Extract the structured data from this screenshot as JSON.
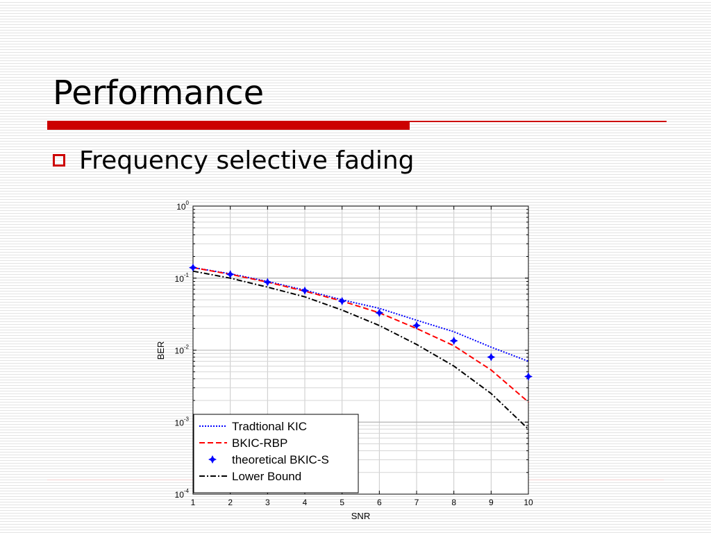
{
  "slide": {
    "title": "Performance",
    "bullet": "Frequency selective fading"
  },
  "colors": {
    "accent_red": "#cc0000",
    "rule_pink": "#f2cccc",
    "series_blue": "#0000ff",
    "series_red": "#ff0000",
    "series_black": "#000000"
  },
  "icons": {
    "bullet": "hollow-square-bullet-icon",
    "marker": "star-diamond-marker-icon"
  },
  "chart_data": {
    "type": "line",
    "title": "",
    "xlabel": "SNR",
    "ylabel": "BER",
    "xlim": [
      1,
      10
    ],
    "ylim": [
      0.0001,
      1
    ],
    "yscale": "log",
    "grid": true,
    "legend_position": "bottom-left",
    "x_ticks": [
      "1",
      "2",
      "3",
      "4",
      "5",
      "6",
      "7",
      "8",
      "9",
      "10"
    ],
    "y_ticks": [
      {
        "base": "10",
        "exp": "0"
      },
      {
        "base": "10",
        "exp": "-1"
      },
      {
        "base": "10",
        "exp": "-2"
      },
      {
        "base": "10",
        "exp": "-3"
      },
      {
        "base": "10",
        "exp": "-4"
      }
    ],
    "x": [
      1,
      2,
      3,
      4,
      5,
      6,
      7,
      8,
      9,
      10
    ],
    "series": [
      {
        "name": "Tradtional KIC",
        "style": "dotted",
        "color": "#0000ff",
        "values": [
          0.14,
          0.115,
          0.09,
          0.068,
          0.05,
          0.038,
          0.026,
          0.018,
          0.011,
          0.007
        ]
      },
      {
        "name": "BKIC-RBP",
        "style": "dashed",
        "color": "#ff0000",
        "values": [
          0.14,
          0.113,
          0.088,
          0.066,
          0.048,
          0.033,
          0.02,
          0.0115,
          0.0053,
          0.0019
        ]
      },
      {
        "name": "theoretical BKIC-S",
        "style": "markers",
        "color": "#0000ff",
        "values": [
          0.14,
          0.113,
          0.088,
          0.067,
          0.048,
          0.033,
          0.022,
          0.0135,
          0.008,
          0.0043
        ]
      },
      {
        "name": "Lower Bound",
        "style": "dashdot",
        "color": "#000000",
        "values": [
          0.125,
          0.1,
          0.075,
          0.055,
          0.036,
          0.022,
          0.012,
          0.006,
          0.0025,
          0.0008
        ]
      }
    ]
  }
}
